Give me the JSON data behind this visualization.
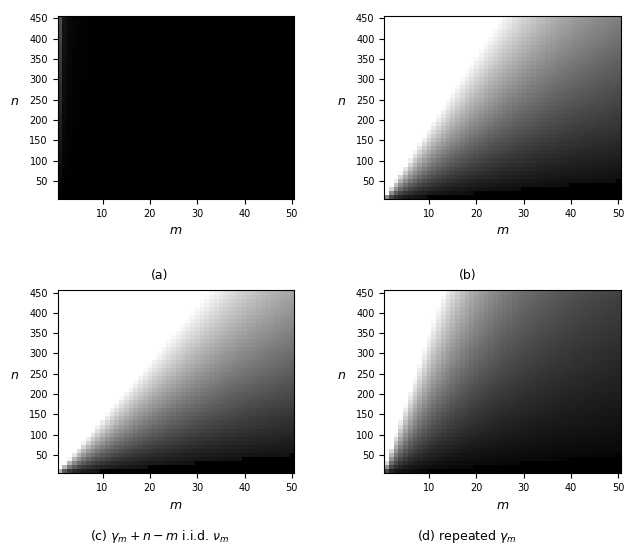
{
  "m_max": 50,
  "n_max": 450,
  "xlabel": "$m$",
  "ylabel": "$n$",
  "caption_c": "(c) $\\gamma_m + n - m$ i.i.d. $\\nu_m$",
  "caption_d": "(d) repeated $\\gamma_m$",
  "cmap": "gray",
  "xticks": [
    10,
    20,
    30,
    40,
    50
  ],
  "yticks": [
    50,
    100,
    150,
    200,
    250,
    300,
    350,
    400,
    450
  ],
  "figsize": [
    6.4,
    5.44
  ],
  "dpi": 100
}
